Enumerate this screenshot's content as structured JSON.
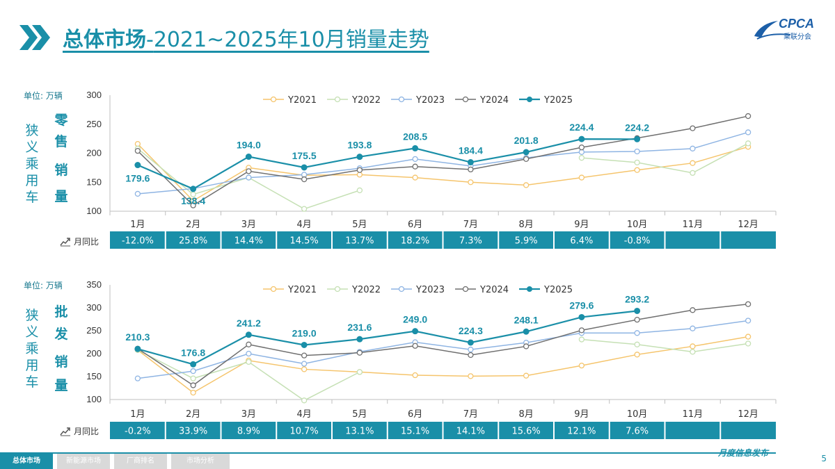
{
  "title": {
    "main": "总体市场",
    "sep": "-",
    "rest": "2021~2025年10月销量走势"
  },
  "logo": {
    "text": "CPCA",
    "sub": "乘联分会"
  },
  "legend": [
    "Y2021",
    "Y2022",
    "Y2023",
    "Y2024",
    "Y2025"
  ],
  "colors": {
    "Y2021": "#f5c46b",
    "Y2022": "#c5e0b4",
    "Y2023": "#8eb4e3",
    "Y2024": "#6f6f6f",
    "Y2025": "#1a8fa8",
    "accent": "#1a8fa8"
  },
  "yoy_label": "月同比",
  "footer": {
    "tabs": [
      "总体市场",
      "新能源市场",
      "厂商排名",
      "市场分析"
    ],
    "right": "月度信息发布",
    "page": "5"
  },
  "chart_data": [
    {
      "type": "line",
      "unit": "单位: 万辆",
      "side_label_1": [
        "狭",
        "义",
        "乘",
        "用",
        "车"
      ],
      "side_label_2": [
        "零",
        "售",
        "销",
        "量"
      ],
      "categories": [
        "1月",
        "2月",
        "3月",
        "4月",
        "5月",
        "6月",
        "7月",
        "8月",
        "9月",
        "10月",
        "11月",
        "12月"
      ],
      "ylim": [
        100,
        300
      ],
      "yticks": [
        100,
        150,
        200,
        250,
        300
      ],
      "series": [
        {
          "name": "Y2021",
          "values": [
            216,
            118,
            175,
            162,
            163,
            158,
            150,
            145,
            158,
            171,
            183,
            211
          ]
        },
        {
          "name": "Y2022",
          "values": [
            208,
            129,
            158,
            104,
            136,
            null,
            null,
            null,
            192,
            184,
            166,
            217
          ]
        },
        {
          "name": "Y2023",
          "values": [
            130,
            139,
            158,
            163,
            174,
            190,
            178,
            192,
            202,
            203,
            208,
            236
          ]
        },
        {
          "name": "Y2024",
          "values": [
            204,
            110,
            169,
            155,
            171,
            177,
            172,
            190,
            210,
            226,
            243,
            264
          ]
        },
        {
          "name": "Y2025",
          "values": [
            179.6,
            138.4,
            194.0,
            175.5,
            193.8,
            208.5,
            184.4,
            201.8,
            224.4,
            224.2,
            null,
            null
          ]
        }
      ],
      "data_labels": [
        "179.6",
        "138.4",
        "194.0",
        "175.5",
        "193.8",
        "208.5",
        "184.4",
        "201.8",
        "224.4",
        "224.2"
      ],
      "yoy": [
        "-12.0%",
        "25.8%",
        "14.4%",
        "14.5%",
        "13.7%",
        "18.2%",
        "7.3%",
        "5.9%",
        "6.4%",
        "-0.8%",
        "",
        ""
      ]
    },
    {
      "type": "line",
      "unit": "单位: 万辆",
      "side_label_1": [
        "狭",
        "义",
        "乘",
        "用",
        "车"
      ],
      "side_label_2": [
        "批",
        "发",
        "销",
        "量"
      ],
      "categories": [
        "1月",
        "2月",
        "3月",
        "4月",
        "5月",
        "6月",
        "7月",
        "8月",
        "9月",
        "10月",
        "11月",
        "12月"
      ],
      "ylim": [
        100,
        350
      ],
      "yticks": [
        100,
        150,
        200,
        250,
        300,
        350
      ],
      "series": [
        {
          "name": "Y2021",
          "values": [
            208,
            115,
            185,
            166,
            160,
            153,
            151,
            152,
            174,
            198,
            216,
            237
          ]
        },
        {
          "name": "Y2022",
          "values": [
            208,
            146,
            182,
            98,
            160,
            null,
            null,
            null,
            231,
            220,
            204,
            222
          ]
        },
        {
          "name": "Y2023",
          "values": [
            146,
            162,
            200,
            178,
            204,
            225,
            209,
            224,
            245,
            245,
            255,
            272
          ]
        },
        {
          "name": "Y2024",
          "values": [
            211,
            131,
            220,
            196,
            202,
            217,
            197,
            216,
            251,
            274,
            295,
            308
          ]
        },
        {
          "name": "Y2025",
          "values": [
            210.3,
            176.8,
            241.2,
            219.0,
            231.6,
            249.0,
            224.3,
            248.1,
            279.6,
            293.2,
            null,
            null
          ]
        }
      ],
      "data_labels": [
        "210.3",
        "176.8",
        "241.2",
        "219.0",
        "231.6",
        "249.0",
        "224.3",
        "248.1",
        "279.6",
        "293.2"
      ],
      "yoy": [
        "-0.2%",
        "33.9%",
        "8.9%",
        "10.7%",
        "13.1%",
        "15.1%",
        "14.1%",
        "15.6%",
        "12.1%",
        "7.6%",
        "",
        ""
      ]
    }
  ]
}
